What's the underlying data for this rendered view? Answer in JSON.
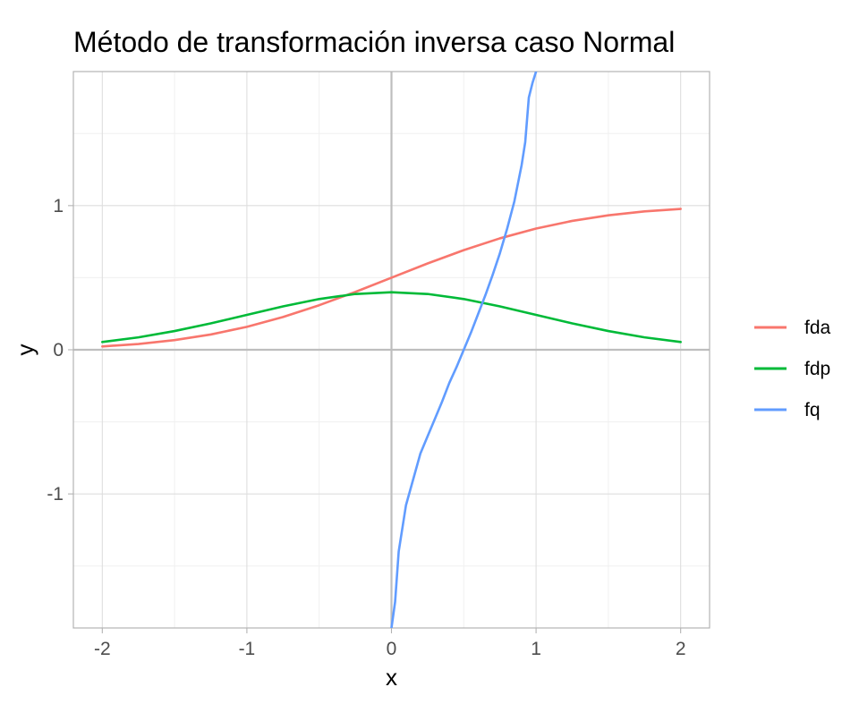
{
  "chart_data": {
    "type": "line",
    "title": "Método de transformación inversa caso Normal",
    "xlabel": "x",
    "ylabel": "y",
    "xlim": [
      -2.2,
      2.2
    ],
    "ylim": [
      -1.93,
      1.93
    ],
    "x_ticks": [
      -2,
      -1,
      0,
      1,
      2
    ],
    "x_tick_labels": [
      "-2",
      "-1",
      "0",
      "1",
      "2"
    ],
    "y_ticks": [
      -1,
      0,
      1
    ],
    "y_tick_labels": [
      "-1",
      "0",
      "1"
    ],
    "grid": true,
    "reference_lines": {
      "x": 0,
      "y": 0
    },
    "legend_position": "right",
    "series": [
      {
        "name": "fda",
        "color": "#F8766D",
        "x": [
          -2,
          -1.75,
          -1.5,
          -1.25,
          -1,
          -0.75,
          -0.5,
          -0.25,
          0,
          0.25,
          0.5,
          0.75,
          1,
          1.25,
          1.5,
          1.75,
          2
        ],
        "y": [
          0.023,
          0.04,
          0.067,
          0.106,
          0.159,
          0.227,
          0.309,
          0.401,
          0.5,
          0.599,
          0.691,
          0.773,
          0.841,
          0.894,
          0.933,
          0.96,
          0.977
        ]
      },
      {
        "name": "fdp",
        "color": "#00BA38",
        "x": [
          -2,
          -1.75,
          -1.5,
          -1.25,
          -1,
          -0.75,
          -0.5,
          -0.25,
          0,
          0.25,
          0.5,
          0.75,
          1,
          1.25,
          1.5,
          1.75,
          2
        ],
        "y": [
          0.054,
          0.086,
          0.13,
          0.183,
          0.242,
          0.301,
          0.352,
          0.387,
          0.399,
          0.387,
          0.352,
          0.301,
          0.242,
          0.183,
          0.13,
          0.086,
          0.054
        ]
      },
      {
        "name": "fq",
        "color": "#619CFF",
        "x": [
          0.0,
          0.025,
          0.05,
          0.1,
          0.15,
          0.2,
          0.25,
          0.3,
          0.35,
          0.4,
          0.45,
          0.5,
          0.55,
          0.6,
          0.65,
          0.7,
          0.75,
          0.8,
          0.85,
          0.9,
          0.925,
          0.95,
          0.975,
          1.0
        ],
        "y": [
          -1.93,
          -1.75,
          -1.4,
          -1.08,
          -0.9,
          -0.72,
          -0.6,
          -0.48,
          -0.36,
          -0.23,
          -0.12,
          0.0,
          0.12,
          0.25,
          0.38,
          0.52,
          0.67,
          0.84,
          1.03,
          1.28,
          1.44,
          1.75,
          1.85,
          1.93
        ]
      }
    ]
  }
}
